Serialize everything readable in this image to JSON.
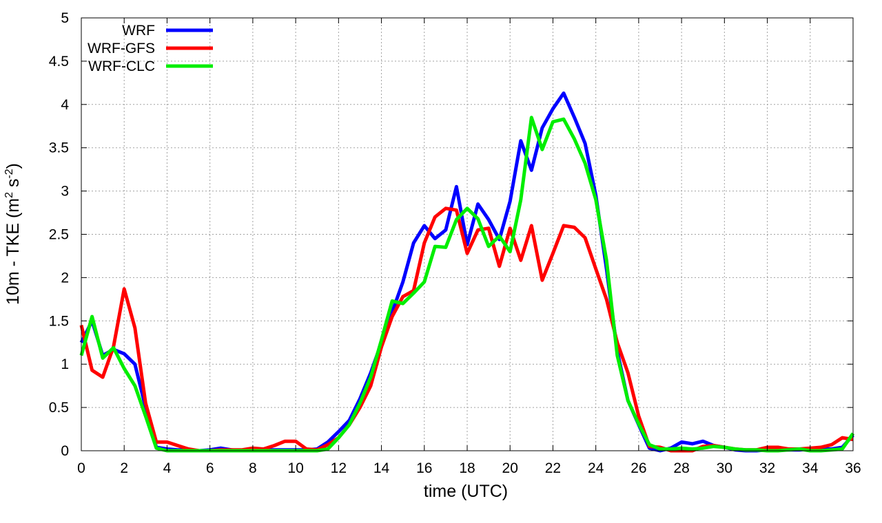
{
  "chart_data": {
    "type": "line",
    "xlabel": "time (UTC)",
    "ylabel_main": "10m - TKE (m",
    "ylabel_exp1": "2",
    "ylabel_mid": " s",
    "ylabel_exp2": "-2",
    "ylabel_end": ")",
    "xlim": [
      0,
      36
    ],
    "ylim": [
      0,
      5
    ],
    "xticks": [
      0,
      2,
      4,
      6,
      8,
      10,
      12,
      14,
      16,
      18,
      20,
      22,
      24,
      26,
      28,
      30,
      32,
      34,
      36
    ],
    "yticks": [
      0,
      0.5,
      1,
      1.5,
      2,
      2.5,
      3,
      3.5,
      4,
      4.5,
      5
    ],
    "ytick_labels": [
      "0",
      "0.5",
      "1",
      "1.5",
      "2",
      "2.5",
      "3",
      "3.5",
      "4",
      "4.5",
      "5"
    ],
    "grid": true,
    "legend_position": "top-left",
    "series": [
      {
        "name": "WRF",
        "color": "#0000ff",
        "x": [
          0,
          0.5,
          1,
          1.5,
          2,
          2.5,
          3,
          3.5,
          4,
          4.5,
          5,
          5.5,
          6,
          6.5,
          7,
          7.5,
          8,
          8.5,
          9,
          9.5,
          10,
          10.5,
          11,
          11.5,
          12,
          12.5,
          13,
          13.5,
          14,
          14.5,
          15,
          15.5,
          16,
          16.5,
          17,
          17.5,
          18,
          18.5,
          19,
          19.5,
          20,
          20.5,
          21,
          21.5,
          22,
          22.5,
          23,
          23.5,
          24,
          24.5,
          25,
          25.5,
          26,
          26.5,
          27,
          27.5,
          28,
          28.5,
          29,
          29.5,
          30,
          30.5,
          31,
          31.5,
          32,
          32.5,
          33,
          33.5,
          34,
          34.5,
          35,
          35.5,
          36
        ],
        "values": [
          1.25,
          1.5,
          1.1,
          1.17,
          1.12,
          1.0,
          0.5,
          0.04,
          0.02,
          0.01,
          0.01,
          0.0,
          0.01,
          0.03,
          0.01,
          0.0,
          0.01,
          0.01,
          0.01,
          0.01,
          0.01,
          0.01,
          0.02,
          0.1,
          0.22,
          0.35,
          0.6,
          0.9,
          1.25,
          1.6,
          1.95,
          2.4,
          2.6,
          2.45,
          2.55,
          3.05,
          2.38,
          2.85,
          2.67,
          2.44,
          2.88,
          3.58,
          3.24,
          3.73,
          3.95,
          4.13,
          3.85,
          3.55,
          2.95,
          2.1,
          1.15,
          0.58,
          0.3,
          0.03,
          0.0,
          0.03,
          0.1,
          0.08,
          0.11,
          0.06,
          0.04,
          0.01,
          0.0,
          0.0,
          0.01,
          0.01,
          0.01,
          0.01,
          0.02,
          0.02,
          0.02,
          0.04,
          0.18
        ]
      },
      {
        "name": "WRF-GFS",
        "color": "#ff0000",
        "x": [
          0,
          0.5,
          1,
          1.5,
          2,
          2.5,
          3,
          3.5,
          4,
          4.5,
          5,
          5.5,
          6,
          6.5,
          7,
          7.5,
          8,
          8.5,
          9,
          9.5,
          10,
          10.5,
          11,
          11.5,
          12,
          12.5,
          13,
          13.5,
          14,
          14.5,
          15,
          15.5,
          16,
          16.5,
          17,
          17.5,
          18,
          18.5,
          19,
          19.5,
          20,
          20.5,
          21,
          21.5,
          22,
          22.5,
          23,
          23.5,
          24,
          24.5,
          25,
          25.5,
          26,
          26.5,
          27,
          27.5,
          28,
          28.5,
          29,
          29.5,
          30,
          30.5,
          31,
          31.5,
          32,
          32.5,
          33,
          33.5,
          34,
          34.5,
          35,
          35.5,
          36
        ],
        "values": [
          1.45,
          0.93,
          0.85,
          1.2,
          1.87,
          1.42,
          0.55,
          0.1,
          0.1,
          0.06,
          0.02,
          0.0,
          0.0,
          0.01,
          0.01,
          0.01,
          0.03,
          0.02,
          0.06,
          0.11,
          0.11,
          0.02,
          0.01,
          0.07,
          0.15,
          0.3,
          0.5,
          0.75,
          1.2,
          1.55,
          1.78,
          1.85,
          2.4,
          2.7,
          2.8,
          2.78,
          2.28,
          2.55,
          2.57,
          2.13,
          2.57,
          2.2,
          2.6,
          1.97,
          2.28,
          2.6,
          2.58,
          2.46,
          2.1,
          1.75,
          1.25,
          0.9,
          0.4,
          0.05,
          0.04,
          0.0,
          0.0,
          0.0,
          0.05,
          0.06,
          0.04,
          0.02,
          0.01,
          0.01,
          0.04,
          0.04,
          0.02,
          0.02,
          0.03,
          0.04,
          0.07,
          0.15,
          0.13
        ]
      },
      {
        "name": "WRF-CLC",
        "color": "#00ee00",
        "x": [
          0,
          0.5,
          1,
          1.5,
          2,
          2.5,
          3,
          3.5,
          4,
          4.5,
          5,
          5.5,
          6,
          6.5,
          7,
          7.5,
          8,
          8.5,
          9,
          9.5,
          10,
          10.5,
          11,
          11.5,
          12,
          12.5,
          13,
          13.5,
          14,
          14.5,
          15,
          15.5,
          16,
          16.5,
          17,
          17.5,
          18,
          18.5,
          19,
          19.5,
          20,
          20.5,
          21,
          21.5,
          22,
          22.5,
          23,
          23.5,
          24,
          24.5,
          25,
          25.5,
          26,
          26.5,
          27,
          27.5,
          28,
          28.5,
          29,
          29.5,
          30,
          30.5,
          31,
          31.5,
          32,
          32.5,
          33,
          33.5,
          34,
          34.5,
          35,
          35.5,
          36
        ],
        "values": [
          1.1,
          1.55,
          1.07,
          1.19,
          0.95,
          0.75,
          0.4,
          0.03,
          0.0,
          0.0,
          0.0,
          0.0,
          0.0,
          0.0,
          0.0,
          0.0,
          0.0,
          0.0,
          0.0,
          0.0,
          0.0,
          0.0,
          0.0,
          0.02,
          0.15,
          0.3,
          0.55,
          0.85,
          1.28,
          1.73,
          1.7,
          1.82,
          1.95,
          2.36,
          2.35,
          2.67,
          2.8,
          2.68,
          2.36,
          2.48,
          2.3,
          2.9,
          3.85,
          3.48,
          3.8,
          3.83,
          3.6,
          3.32,
          2.9,
          2.2,
          1.1,
          0.58,
          0.31,
          0.07,
          0.02,
          0.02,
          0.03,
          0.02,
          0.03,
          0.05,
          0.04,
          0.02,
          0.01,
          0.01,
          0.0,
          0.0,
          0.01,
          0.02,
          0.0,
          0.0,
          0.01,
          0.02,
          0.2
        ]
      }
    ]
  }
}
